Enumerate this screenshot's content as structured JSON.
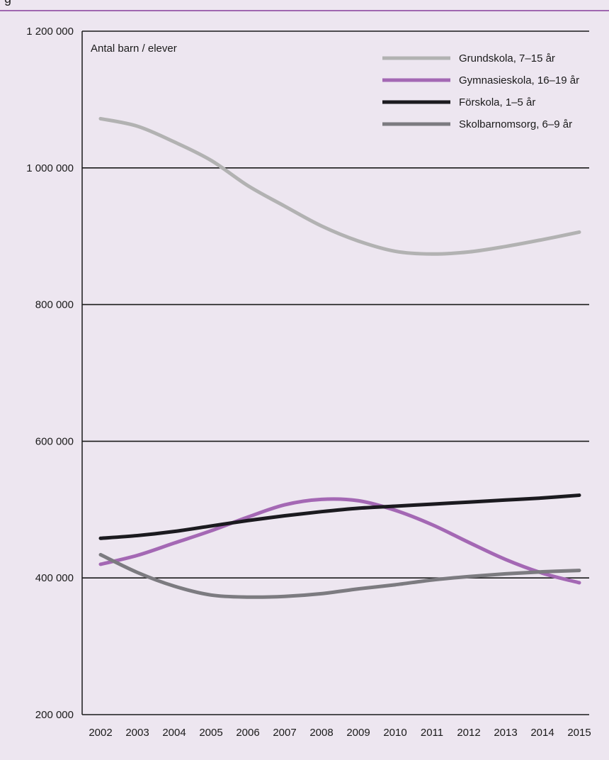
{
  "header": {
    "figure_caption_fragment": "g"
  },
  "chart_data": {
    "type": "line",
    "ylabel": "Antal barn / elever",
    "xlabel": "",
    "x": [
      "2002",
      "2003",
      "2004",
      "2005",
      "2006",
      "2007",
      "2008",
      "2009",
      "2010",
      "2011",
      "2012",
      "2013",
      "2014",
      "2015"
    ],
    "ylim": [
      200000,
      1200000
    ],
    "yticks": [
      200000,
      400000,
      600000,
      800000,
      1000000,
      1200000
    ],
    "ytick_labels": [
      "200 000",
      "400 000",
      "600 000",
      "800 000",
      "1 000 000",
      "1 200 000"
    ],
    "grid": "horizontal",
    "legend_position": "top-right",
    "series": [
      {
        "name": "Grundskola, 7–15 år",
        "color": "#b2b2b2",
        "values": [
          1072000,
          1061000,
          1038000,
          1011000,
          974000,
          944000,
          915000,
          893000,
          878000,
          874000,
          877000,
          885000,
          895000,
          906000
        ]
      },
      {
        "name": "Gymnasieskola, 16–19 år",
        "color": "#a468b4",
        "values": [
          420000,
          433000,
          451000,
          469000,
          489000,
          507000,
          515000,
          513000,
          499000,
          478000,
          452000,
          427000,
          407000,
          393000
        ]
      },
      {
        "name": "Förskola, 1–5 år",
        "color": "#1b1a1f",
        "values": [
          458000,
          462000,
          468000,
          476000,
          484000,
          491000,
          497000,
          502000,
          505000,
          508000,
          511000,
          514000,
          517000,
          521000
        ]
      },
      {
        "name": "Skolbarnomsorg, 6–9 år",
        "color": "#7c7b80",
        "values": [
          434000,
          408000,
          388000,
          375000,
          372000,
          373000,
          377000,
          384000,
          390000,
          397000,
          402000,
          406000,
          409000,
          411000
        ]
      }
    ]
  }
}
